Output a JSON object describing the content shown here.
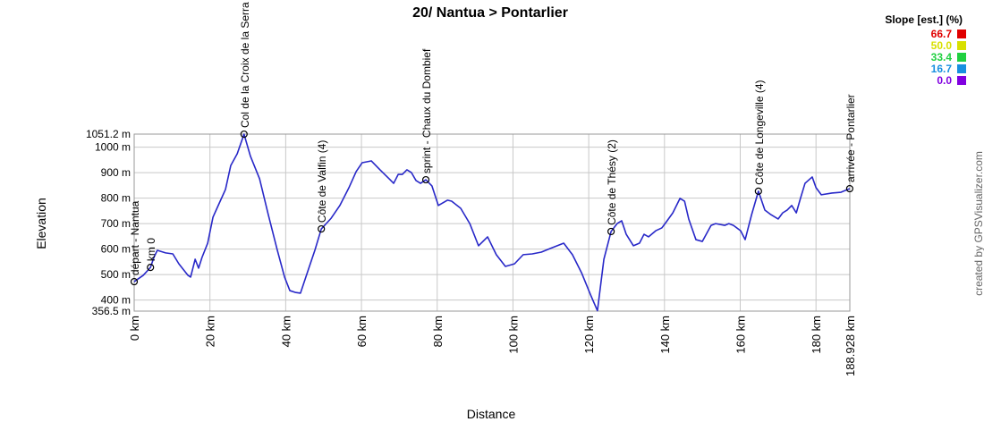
{
  "chart_data": {
    "type": "line",
    "title": "20/ Nantua > Pontarlier",
    "xlabel": "Distance",
    "ylabel": "Elevation",
    "credit": "created by GPSVisualizer.com",
    "legend": {
      "title": "Slope [est.] (%)",
      "items": [
        {
          "label": "66.7",
          "color": "#e00000"
        },
        {
          "label": "50.0",
          "color": "#d8e000"
        },
        {
          "label": "33.4",
          "color": "#20d040"
        },
        {
          "label": "16.7",
          "color": "#1890e0"
        },
        {
          "label": "0.0",
          "color": "#8000e0"
        }
      ]
    },
    "xlim": [
      0,
      188.928
    ],
    "ylim": [
      356.5,
      1051.2
    ],
    "xticks": [
      {
        "value": 0,
        "label": "0 km"
      },
      {
        "value": 20,
        "label": "20 km"
      },
      {
        "value": 40,
        "label": "40 km"
      },
      {
        "value": 60,
        "label": "60 km"
      },
      {
        "value": 80,
        "label": "80 km"
      },
      {
        "value": 100,
        "label": "100 km"
      },
      {
        "value": 120,
        "label": "120 km"
      },
      {
        "value": 140,
        "label": "140 km"
      },
      {
        "value": 160,
        "label": "160 km"
      },
      {
        "value": 180,
        "label": "180 km"
      },
      {
        "value": 188.928,
        "label": "188.928 km"
      }
    ],
    "yticks": [
      {
        "value": 356.5,
        "label": "356.5 m"
      },
      {
        "value": 400,
        "label": "400 m"
      },
      {
        "value": 500,
        "label": "500 m"
      },
      {
        "value": 600,
        "label": "600 m"
      },
      {
        "value": 700,
        "label": "700 m"
      },
      {
        "value": 800,
        "label": "800 m"
      },
      {
        "value": 900,
        "label": "900 m"
      },
      {
        "value": 1000,
        "label": "1000 m"
      },
      {
        "value": 1051.2,
        "label": "1051.2 m"
      }
    ],
    "grid": true,
    "series": [
      {
        "name": "Elevation",
        "color": "#2828c8",
        "x": [
          0,
          2.4,
          4.3,
          5.2,
          6.1,
          8.3,
          10.2,
          11.8,
          14.2,
          14.9,
          16.1,
          17.0,
          17.9,
          19.4,
          20.8,
          22.4,
          24.1,
          25.5,
          27.2,
          29.0,
          30.7,
          33.1,
          35.4,
          37.8,
          39.7,
          41.1,
          42.5,
          43.9,
          46.1,
          47.7,
          49.4,
          52.0,
          54.3,
          56.7,
          58.6,
          60.2,
          62.6,
          64.9,
          67.3,
          68.5,
          69.7,
          70.8,
          72.0,
          73.2,
          74.4,
          75.6,
          77.0,
          78.6,
          80.3,
          82.7,
          83.8,
          86.2,
          88.6,
          90.9,
          93.3,
          95.6,
          98.0,
          100.4,
          102.7,
          105.1,
          107.5,
          109.8,
          113.4,
          115.7,
          118.1,
          120.5,
          122.3,
          124.0,
          125.9,
          127.5,
          128.7,
          129.9,
          131.8,
          133.4,
          134.6,
          135.8,
          137.7,
          139.3,
          140.5,
          142.2,
          144.1,
          145.3,
          146.4,
          148.3,
          150.0,
          152.3,
          153.5,
          155.9,
          157.0,
          158.2,
          160.1,
          161.3,
          163.0,
          164.8,
          166.5,
          168.1,
          170.0,
          171.2,
          172.4,
          173.6,
          174.8,
          175.9,
          177.1,
          179.0,
          180.0,
          181.4,
          184.2,
          186.6,
          188.9
        ],
        "values": [
          472,
          497,
          528,
          567,
          595,
          585,
          581,
          542,
          497,
          490,
          560,
          525,
          567,
          623,
          725,
          778,
          834,
          928,
          974,
          1051,
          964,
          876,
          735,
          595,
          490,
          437,
          430,
          427,
          525,
          595,
          679,
          721,
          771,
          841,
          904,
          939,
          946,
          911,
          876,
          858,
          893,
          893,
          911,
          900,
          869,
          858,
          872,
          848,
          771,
          792,
          788,
          760,
          700,
          613,
          648,
          578,
          532,
          542,
          578,
          581,
          588,
          602,
          623,
          578,
          507,
          420,
          358,
          560,
          669,
          700,
          711,
          658,
          613,
          623,
          658,
          648,
          672,
          683,
          707,
          742,
          799,
          788,
          718,
          637,
          630,
          693,
          700,
          693,
          700,
          693,
          672,
          637,
          735,
          827,
          753,
          735,
          718,
          742,
          753,
          771,
          742,
          799,
          858,
          883,
          841,
          813,
          820,
          823,
          837
        ]
      }
    ],
    "waypoints": [
      {
        "name": "départ - Nantua",
        "x": 0,
        "y": 472
      },
      {
        "name": "km 0",
        "x": 4.3,
        "y": 528
      },
      {
        "name": "Col de la Croix de la Serra",
        "x": 29.0,
        "y": 1051
      },
      {
        "name": "Côte de Valfin (4)",
        "x": 49.4,
        "y": 679
      },
      {
        "name": "sprint - Chaux du Dombief",
        "x": 77.0,
        "y": 872
      },
      {
        "name": "Côte de Thésy (2)",
        "x": 125.9,
        "y": 669
      },
      {
        "name": "Côte de Longeville (4)",
        "x": 164.8,
        "y": 827
      },
      {
        "name": "arrivée - Pontarlier",
        "x": 188.9,
        "y": 837
      }
    ]
  }
}
